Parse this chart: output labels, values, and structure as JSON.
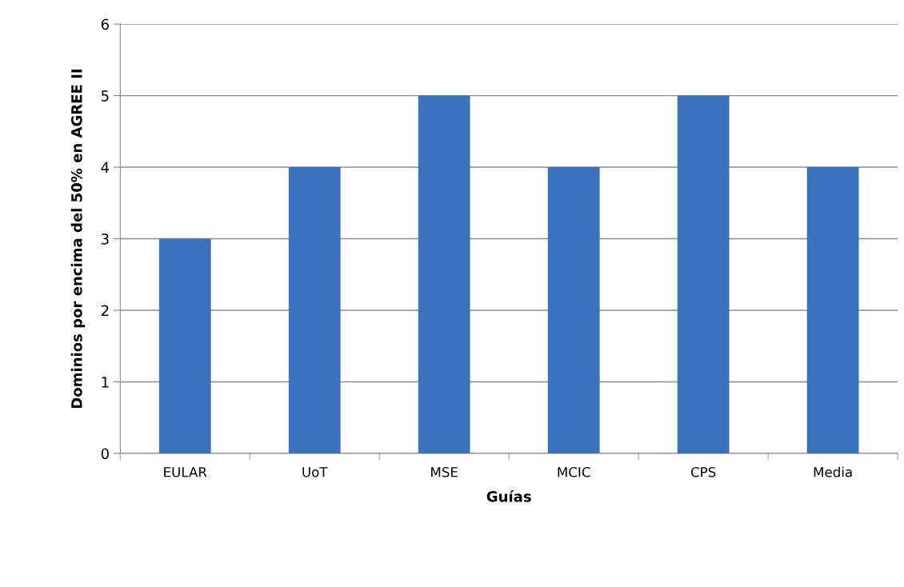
{
  "chart_data": {
    "type": "bar",
    "xlabel": "Guías",
    "ylabel": "Dominios por encima del 50% en AGREE II",
    "categories": [
      "EULAR",
      "UoT",
      "MSE",
      "MCIC",
      "CPS",
      "Media"
    ],
    "values": [
      3,
      4,
      5,
      4,
      5,
      4
    ],
    "color": "#3a72bd",
    "ylim": [
      0,
      6
    ],
    "yticks": [
      0,
      1,
      2,
      3,
      4,
      5,
      6
    ],
    "grid": "y",
    "legend": false
  }
}
